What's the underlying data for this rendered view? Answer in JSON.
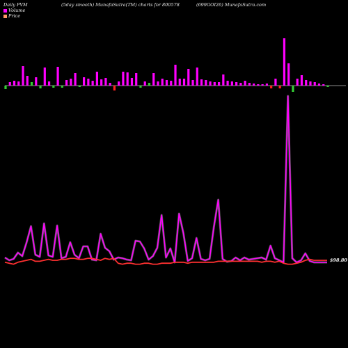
{
  "header": {
    "left": "Daily PVM",
    "center": "(5day smooth) MunafaSutra(TM) charts for 800578",
    "right": "(699GOI26) MunafaSutra.com"
  },
  "legend": [
    {
      "label": "Volume",
      "color": "#ff00ff"
    },
    {
      "label": "Price",
      "color": "#ff9966"
    }
  ],
  "price_label": "$98.80",
  "colors": {
    "up": "#ff00ff",
    "down": "#ff2020",
    "flat": "#33cc33",
    "price": "#ff3030",
    "smooth": "#cc66ff",
    "axis": "#bbbbbb"
  },
  "chart_data": {
    "type": "bar+line",
    "baseline": 0,
    "volume_bars": [
      {
        "v": -5,
        "c": "flat"
      },
      {
        "v": 5,
        "c": "up"
      },
      {
        "v": 7,
        "c": "up"
      },
      {
        "v": 6,
        "c": "up"
      },
      {
        "v": 28,
        "c": "up"
      },
      {
        "v": 14,
        "c": "up"
      },
      {
        "v": 5,
        "c": "flat"
      },
      {
        "v": 12,
        "c": "up"
      },
      {
        "v": -4,
        "c": "flat"
      },
      {
        "v": 26,
        "c": "up"
      },
      {
        "v": 6,
        "c": "up"
      },
      {
        "v": -3,
        "c": "flat"
      },
      {
        "v": 27,
        "c": "up"
      },
      {
        "v": -3,
        "c": "flat"
      },
      {
        "v": 8,
        "c": "up"
      },
      {
        "v": 10,
        "c": "up"
      },
      {
        "v": 18,
        "c": "up"
      },
      {
        "v": -2,
        "c": "flat"
      },
      {
        "v": 12,
        "c": "up"
      },
      {
        "v": 10,
        "c": "up"
      },
      {
        "v": 7,
        "c": "up"
      },
      {
        "v": 20,
        "c": "up"
      },
      {
        "v": 9,
        "c": "up"
      },
      {
        "v": 11,
        "c": "up"
      },
      {
        "v": 4,
        "c": "up"
      },
      {
        "v": -7,
        "c": "down"
      },
      {
        "v": 6,
        "c": "up"
      },
      {
        "v": 20,
        "c": "up"
      },
      {
        "v": 19,
        "c": "up"
      },
      {
        "v": 11,
        "c": "up"
      },
      {
        "v": 18,
        "c": "up"
      },
      {
        "v": -3,
        "c": "flat"
      },
      {
        "v": 6,
        "c": "up"
      },
      {
        "v": 4,
        "c": "flat"
      },
      {
        "v": 18,
        "c": "up"
      },
      {
        "v": 6,
        "c": "up"
      },
      {
        "v": 10,
        "c": "up"
      },
      {
        "v": 8,
        "c": "up"
      },
      {
        "v": 7,
        "c": "up"
      },
      {
        "v": 30,
        "c": "up"
      },
      {
        "v": 10,
        "c": "up"
      },
      {
        "v": 10,
        "c": "up"
      },
      {
        "v": 24,
        "c": "up"
      },
      {
        "v": 8,
        "c": "up"
      },
      {
        "v": 26,
        "c": "up"
      },
      {
        "v": 9,
        "c": "up"
      },
      {
        "v": 8,
        "c": "up"
      },
      {
        "v": 6,
        "c": "up"
      },
      {
        "v": 5,
        "c": "up"
      },
      {
        "v": 5,
        "c": "up"
      },
      {
        "v": 16,
        "c": "up"
      },
      {
        "v": 7,
        "c": "up"
      },
      {
        "v": 6,
        "c": "up"
      },
      {
        "v": 5,
        "c": "up"
      },
      {
        "v": 4,
        "c": "up"
      },
      {
        "v": 7,
        "c": "up"
      },
      {
        "v": 4,
        "c": "up"
      },
      {
        "v": 3,
        "c": "up"
      },
      {
        "v": 2,
        "c": "up"
      },
      {
        "v": 2,
        "c": "up"
      },
      {
        "v": 3,
        "c": "up"
      },
      {
        "v": -4,
        "c": "down"
      },
      {
        "v": 10,
        "c": "up"
      },
      {
        "v": -4,
        "c": "down"
      },
      {
        "v": 68,
        "c": "up"
      },
      {
        "v": 32,
        "c": "up"
      },
      {
        "v": -9,
        "c": "flat"
      },
      {
        "v": 10,
        "c": "up"
      },
      {
        "v": 15,
        "c": "up"
      },
      {
        "v": 8,
        "c": "up"
      },
      {
        "v": 6,
        "c": "up"
      },
      {
        "v": 5,
        "c": "up"
      },
      {
        "v": 3,
        "c": "up"
      },
      {
        "v": 2,
        "c": "up"
      },
      {
        "v": -2,
        "c": "flat"
      }
    ],
    "volume_smooth": [
      8,
      4,
      6,
      15,
      10,
      30,
      53,
      12,
      9,
      57,
      11,
      9,
      54,
      7,
      9,
      30,
      12,
      7,
      24,
      24,
      5,
      4,
      42,
      22,
      17,
      5,
      8,
      7,
      5,
      4,
      32,
      31,
      21,
      5,
      10,
      22,
      69,
      8,
      21,
      1,
      71,
      43,
      3,
      7,
      36,
      6,
      4,
      6,
      52,
      91,
      6,
      2,
      3,
      8,
      4,
      8,
      5,
      6,
      7,
      8,
      5,
      25,
      7,
      4,
      1,
      240,
      7,
      1,
      4,
      14,
      3,
      1,
      1,
      1,
      1
    ],
    "price": [
      3,
      2,
      1,
      3,
      4,
      5,
      6,
      4,
      4,
      5,
      6,
      5,
      5,
      6,
      6,
      7,
      7,
      6,
      6,
      7,
      7,
      6,
      5,
      7,
      6,
      7,
      2,
      1,
      2,
      2,
      1,
      1,
      2,
      2,
      1,
      1,
      2,
      2,
      2,
      3,
      3,
      3,
      2,
      3,
      3,
      3,
      3,
      3,
      3,
      4,
      4,
      4,
      4,
      4,
      4,
      4,
      4,
      4,
      4,
      3,
      4,
      4,
      3,
      4,
      2,
      1,
      1,
      2,
      3,
      5,
      6,
      5,
      5,
      5,
      5
    ]
  }
}
